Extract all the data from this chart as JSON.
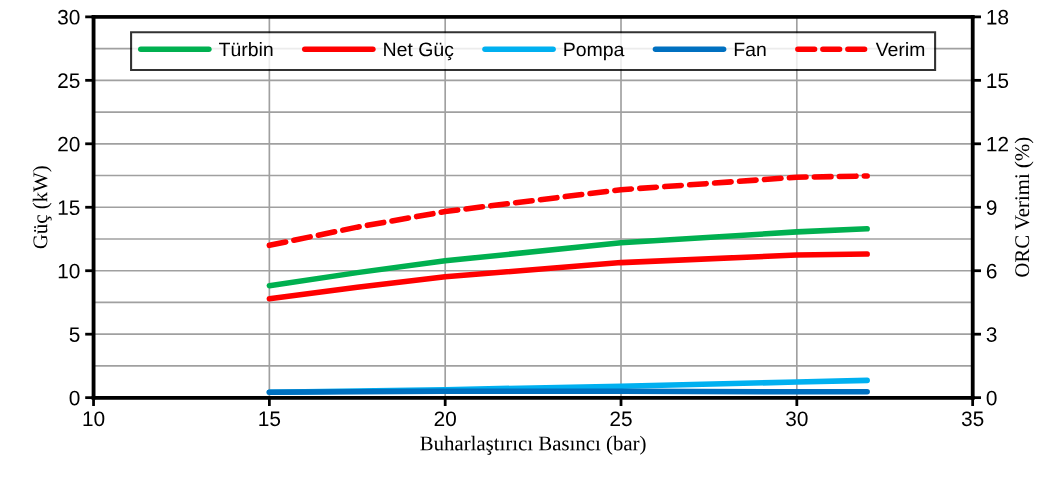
{
  "chart_data": {
    "type": "line",
    "xlabel": "Buharlaştırıcı Basıncı (bar)",
    "ylabel": "Güç (kW)",
    "y2label": "ORC Verimi (%)",
    "x": [
      15,
      17.5,
      20,
      25,
      30,
      32
    ],
    "series": [
      {
        "name": "Türbin",
        "color": "#00b050",
        "values": [
          8.82,
          9.85,
          10.78,
          12.2,
          13.06,
          13.3
        ]
      },
      {
        "name": "Net Güç",
        "color": "#ff0000",
        "values": [
          7.79,
          8.69,
          9.52,
          10.64,
          11.24,
          11.31
        ]
      },
      {
        "name": "Pompa",
        "color": "#00b0f0",
        "values": [
          0.43,
          0.53,
          0.63,
          0.9,
          1.23,
          1.36
        ]
      },
      {
        "name": "Fan",
        "color": "#0070c0",
        "values": [
          0.43,
          0.47,
          0.5,
          0.5,
          0.46,
          0.46
        ]
      },
      {
        "name": "Verim",
        "color": "#ff0000",
        "axis": "y2",
        "line_style": "dashed",
        "values": [
          7.2,
          8.06,
          8.8,
          9.83,
          10.42,
          10.48
        ]
      }
    ],
    "xlim": [
      10,
      35
    ],
    "xticks": [
      10,
      15,
      20,
      25,
      30,
      35
    ],
    "ylim": [
      0,
      30
    ],
    "yticks": [
      0,
      {
        "value": 2.5,
        "label": null
      },
      5,
      {
        "value": 7.5,
        "label": null
      },
      10,
      {
        "value": 12.5,
        "label": null
      },
      15,
      {
        "value": 17.5,
        "label": null
      },
      20,
      {
        "value": 22.5,
        "label": null
      },
      25,
      {
        "value": 27.5,
        "label": null
      },
      30
    ],
    "y2lim": [
      0,
      18
    ],
    "y2ticks": [
      0,
      3,
      6,
      9,
      12,
      15,
      18
    ],
    "grid": true,
    "legend": "top",
    "marker": "none",
    "line_style": "solid"
  }
}
